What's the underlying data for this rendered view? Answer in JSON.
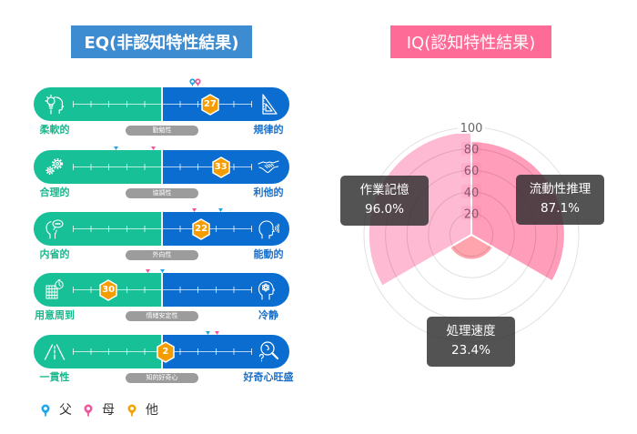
{
  "theme": {
    "eq_title_bg": "#3d8bd1",
    "iq_title_bg": "#ff6b97",
    "left_pole": "#17c096",
    "right_pole": "#0a6dcf",
    "left_label": "#17b88c",
    "right_label": "#1a6fc8",
    "badge": "#f59c00",
    "pill": "#9c9c9c",
    "tooltip_bg": "rgba(45,45,45,0.82)"
  },
  "eq": {
    "icons": [
      {
        "left": "lightbulb-head-icon",
        "right": "set-square-icon"
      },
      {
        "left": "gears-icon",
        "right": "handshake-icon"
      },
      {
        "left": "thinking-head-icon",
        "right": "speaking-head-icon"
      },
      {
        "left": "calendar-stopwatch-icon",
        "right": "head-atom-icon"
      },
      {
        "left": "road-icon",
        "right": "magnifier-question-icon"
      }
    ],
    "marker_styles": [
      "pin",
      "triangle",
      "triangle",
      "triangle",
      "triangle"
    ]
  },
  "legend": {
    "items": [
      {
        "label": "父",
        "color": "#1ea8e8",
        "icon": "map-pin-icon"
      },
      {
        "label": "母",
        "color": "#f0579a",
        "icon": "map-pin-icon"
      },
      {
        "label": "他",
        "color": "#f5a300",
        "icon": "map-pin-icon"
      }
    ]
  },
  "chart_data": [
    {
      "id": "iq",
      "type": "pie",
      "variant": "polar_area",
      "title": "IQ(認知特性結果)",
      "categories": [
        "流動性推理",
        "処理速度",
        "作業記憶"
      ],
      "values": [
        87.1,
        23.4,
        96.0
      ],
      "value_labels": [
        "87.1%",
        "23.4%",
        "96.0%"
      ],
      "r_range": [
        0,
        100
      ],
      "r_ticks": [
        "20",
        "40",
        "60",
        "80",
        "100"
      ],
      "start": "top, clockwise",
      "colors": [
        "#ff9dba",
        "#ffa3ad",
        "#ffbad3"
      ],
      "grid": true,
      "legend": false
    },
    {
      "id": "eq",
      "type": "bar",
      "variant": "diverging_scale",
      "title": "EQ(非認知特性結果)",
      "categories": [
        "勤勉性",
        "協調性",
        "外向性",
        "情緒安定性",
        "知的好奇心"
      ],
      "left_poles": [
        "柔軟的",
        "合理的",
        "内省的",
        "用意周到",
        "一貫性"
      ],
      "right_poles": [
        "規律的",
        "利他的",
        "能動的",
        "冷静",
        "好奇心旺盛"
      ],
      "xlim": [
        -50,
        50
      ],
      "tick_step": 10,
      "series": [
        {
          "name": "他",
          "values": [
            27,
            33,
            22,
            -30,
            2
          ],
          "display": [
            "27",
            "33",
            "22",
            "30",
            "2"
          ],
          "color": "#f59c00"
        },
        {
          "name": "父",
          "values": [
            17,
            -26,
            33,
            0,
            26
          ],
          "color": "#1ea8e8"
        },
        {
          "name": "母",
          "values": [
            20,
            -5,
            18,
            -8,
            31
          ],
          "color": "#f0579a"
        }
      ]
    }
  ]
}
